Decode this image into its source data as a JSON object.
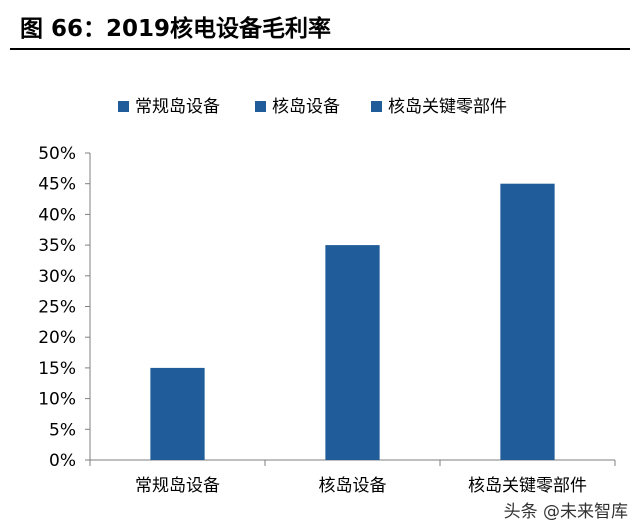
{
  "header": {
    "title": "图 66：2019核电设备毛利率"
  },
  "watermark": {
    "text": "头条 @未来智库"
  },
  "chart_data": {
    "type": "bar",
    "categories": [
      "常规岛设备",
      "核岛设备",
      "核岛关键零部件"
    ],
    "series": [
      {
        "name_by_category": true,
        "values": [
          0.15,
          0.35,
          0.45
        ]
      }
    ],
    "legend": [
      "常规岛设备",
      "核岛设备",
      "核岛关键零部件"
    ],
    "legend_position": "top",
    "ylim": [
      0,
      0.5
    ],
    "yticks": [
      "0%",
      "5%",
      "10%",
      "15%",
      "20%",
      "25%",
      "30%",
      "35%",
      "40%",
      "45%",
      "50%"
    ],
    "grid": false,
    "bar_color": "#1F5C99"
  }
}
